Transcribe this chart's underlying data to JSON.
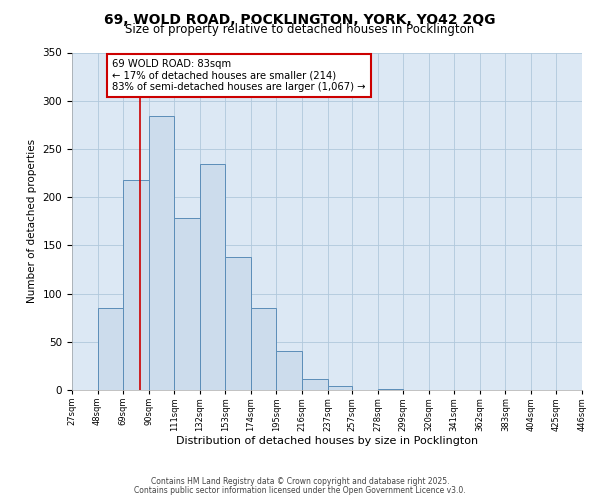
{
  "title": "69, WOLD ROAD, POCKLINGTON, YORK, YO42 2QG",
  "subtitle": "Size of property relative to detached houses in Pocklington",
  "xlabel": "Distribution of detached houses by size in Pocklington",
  "ylabel": "Number of detached properties",
  "bar_values": [
    0,
    85,
    218,
    284,
    178,
    234,
    138,
    85,
    40,
    11,
    4,
    0,
    1,
    0,
    0,
    0,
    0,
    0,
    0,
    0
  ],
  "bin_edges": [
    27,
    48,
    69,
    90,
    111,
    132,
    153,
    174,
    195,
    216,
    237,
    257,
    278,
    299,
    320,
    341,
    362,
    383,
    404,
    425,
    446
  ],
  "tick_labels": [
    "27sqm",
    "48sqm",
    "69sqm",
    "90sqm",
    "111sqm",
    "132sqm",
    "153sqm",
    "174sqm",
    "195sqm",
    "216sqm",
    "237sqm",
    "257sqm",
    "278sqm",
    "299sqm",
    "320sqm",
    "341sqm",
    "362sqm",
    "383sqm",
    "404sqm",
    "425sqm",
    "446sqm"
  ],
  "bar_color": "#ccdcec",
  "bar_edge_color": "#5b8db8",
  "vline_x": 83,
  "vline_color": "#cc0000",
  "annotation_text": "69 WOLD ROAD: 83sqm\n← 17% of detached houses are smaller (214)\n83% of semi-detached houses are larger (1,067) →",
  "annotation_box_color": "#ffffff",
  "annotation_box_edge": "#cc0000",
  "ylim": [
    0,
    350
  ],
  "yticks": [
    0,
    50,
    100,
    150,
    200,
    250,
    300,
    350
  ],
  "grid_color": "#b0c8dc",
  "background_color": "#dce8f4",
  "footer_line1": "Contains HM Land Registry data © Crown copyright and database right 2025.",
  "footer_line2": "Contains public sector information licensed under the Open Government Licence v3.0.",
  "title_fontsize": 10,
  "subtitle_fontsize": 8.5,
  "annot_fontsize": 7.2,
  "ylabel_fontsize": 7.5,
  "xlabel_fontsize": 8,
  "ytick_fontsize": 7.5,
  "xtick_fontsize": 6.0
}
